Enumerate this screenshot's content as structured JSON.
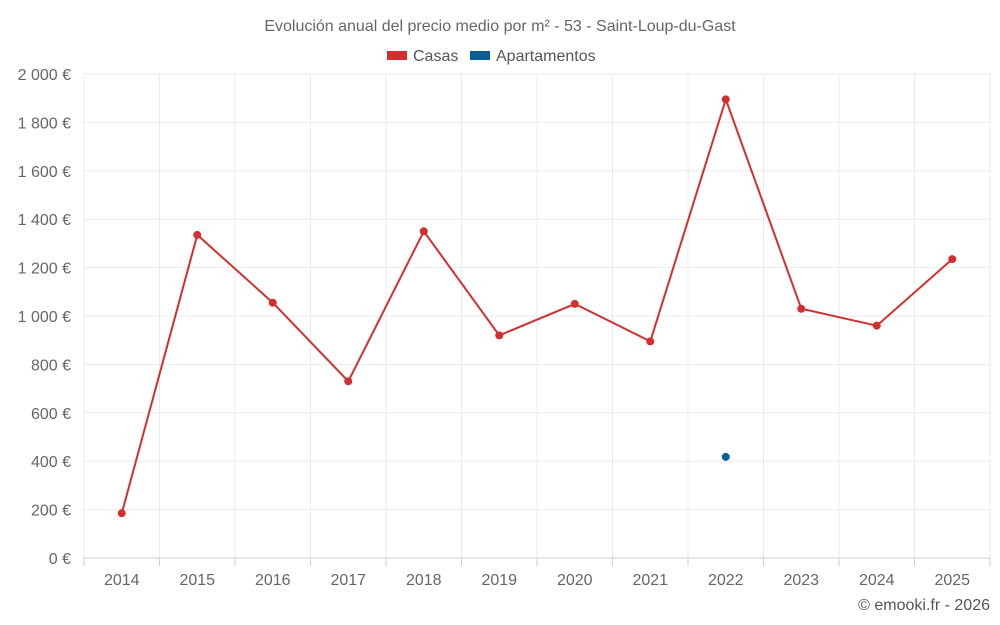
{
  "chart_data": {
    "type": "line",
    "title": "Evolución anual del precio medio por m² - 53 - Saint-Loup-du-Gast",
    "categories": [
      "2014",
      "2015",
      "2016",
      "2017",
      "2018",
      "2019",
      "2020",
      "2021",
      "2022",
      "2023",
      "2024",
      "2025"
    ],
    "series": [
      {
        "name": "Casas",
        "color": "#d32f2f",
        "values": [
          185,
          1335,
          1055,
          730,
          1350,
          920,
          1050,
          895,
          1895,
          1030,
          960,
          1235
        ]
      },
      {
        "name": "Apartamentos",
        "color": "#0a5f96",
        "values": [
          null,
          null,
          null,
          null,
          null,
          null,
          null,
          null,
          418,
          null,
          null,
          null
        ]
      }
    ],
    "ylim": [
      0,
      2000
    ],
    "yticks": [
      0,
      200,
      400,
      600,
      800,
      1000,
      1200,
      1400,
      1600,
      1800,
      2000
    ],
    "ytick_labels": [
      "0 €",
      "200 €",
      "400 €",
      "600 €",
      "800 €",
      "1 000 €",
      "1 200 €",
      "1 400 €",
      "1 600 €",
      "1 800 €",
      "2 000 €"
    ],
    "grid": true,
    "legend_position": "top-center",
    "xlabel": "",
    "ylabel": ""
  },
  "credit": "© emooki.fr - 2026"
}
